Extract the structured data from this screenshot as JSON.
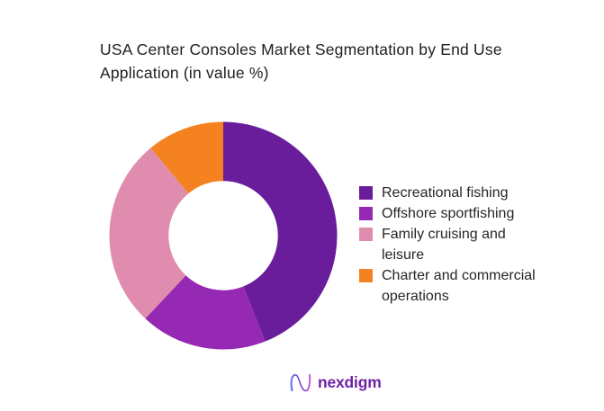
{
  "header": {
    "title": "USA Center Consoles Market Segmentation by End Use Application (in value %)"
  },
  "chart_data": {
    "type": "pie",
    "subtype": "donut",
    "title": "USA Center Consoles Market Segmentation by End Use Application (in value %)",
    "units": "value %",
    "categories": [
      "Recreational fishing",
      "Offshore sportfishing",
      "Family cruising and leisure",
      "Charter and commercial operations"
    ],
    "values": [
      44,
      18,
      27,
      11
    ],
    "colors": [
      "#6A1D9B",
      "#9629B3",
      "#E08CAE",
      "#F58220"
    ],
    "legend_position": "right",
    "start_angle_deg": 0,
    "clockwise": true,
    "inner_radius_ratio": 0.48,
    "data_labels": false
  },
  "footer": {
    "brand": "nexdigm",
    "brand_color": "#6E23A5",
    "logo_gradient": [
      "#5C6BE8",
      "#7A3FD1",
      "#B04AD6"
    ]
  }
}
